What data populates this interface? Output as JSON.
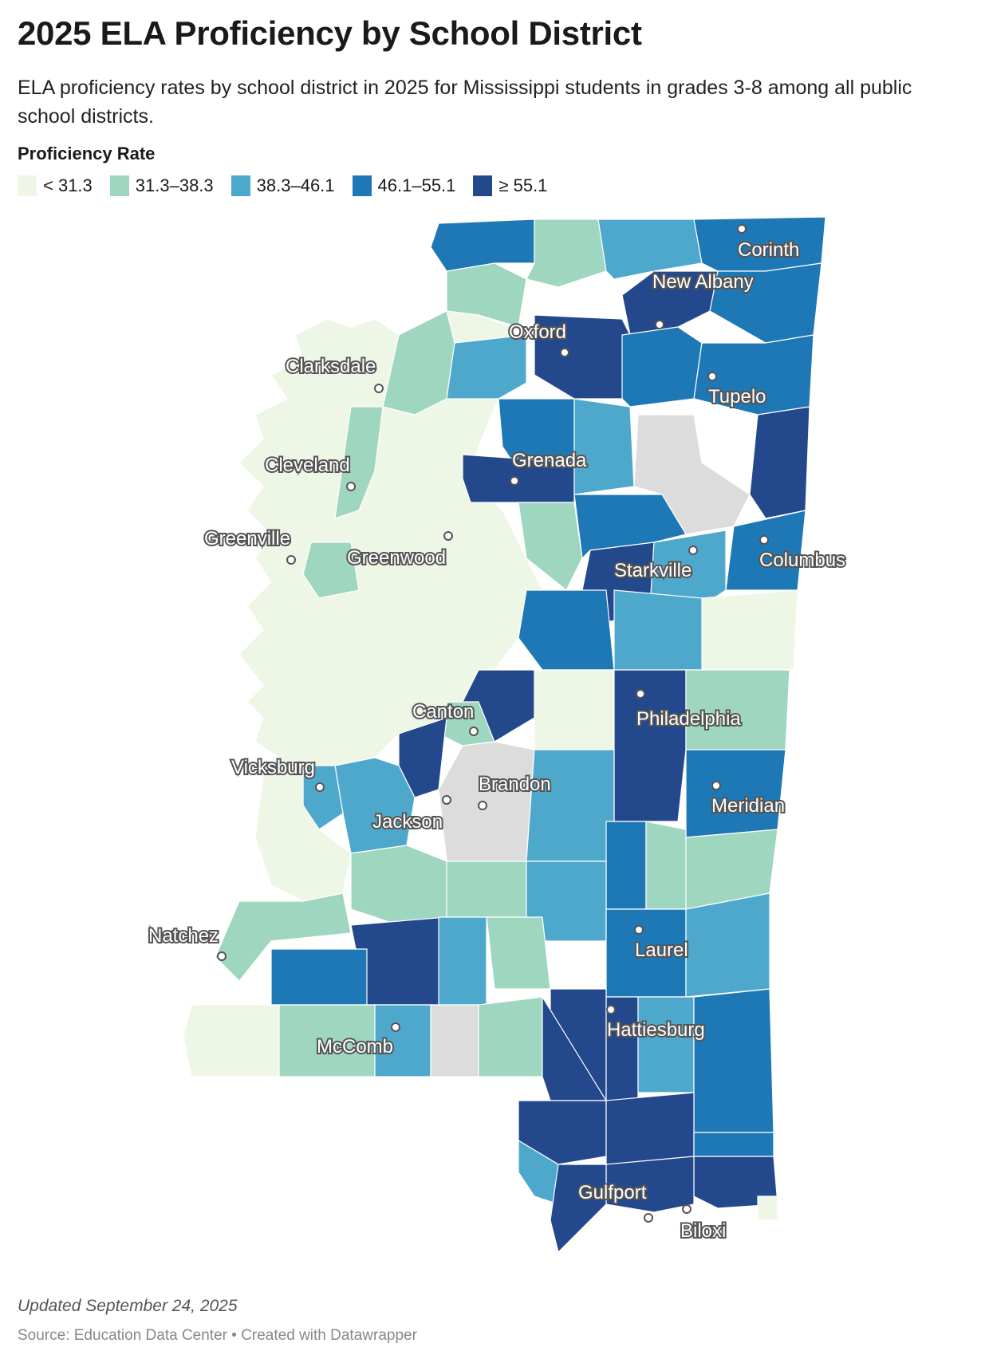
{
  "title": "2025 ELA Proficiency by School District",
  "subtitle": "ELA proficiency rates by school district in 2025 for Mississippi students in grades 3-8 among all public school districts.",
  "legend": {
    "title": "Proficiency Rate",
    "items": [
      {
        "label": "< 31.3",
        "color": "#eef6e6"
      },
      {
        "label": "31.3–38.3",
        "color": "#9fd6bf"
      },
      {
        "label": "38.3–46.1",
        "color": "#4ea8cb"
      },
      {
        "label": "46.1–55.1",
        "color": "#1f78b6"
      },
      {
        "label": "≥ 55.1",
        "color": "#24488c"
      }
    ]
  },
  "no_data_color": "#dcdcdc",
  "cities": [
    "Corinth",
    "New Albany",
    "Oxford",
    "Clarksdale",
    "Tupelo",
    "Grenada",
    "Cleveland",
    "Greenville",
    "Greenwood",
    "Columbus",
    "Starkville",
    "Philadelphia",
    "Canton",
    "Vicksburg",
    "Brandon",
    "Jackson",
    "Meridian",
    "Natchez",
    "Laurel",
    "Hattiesburg",
    "McComb",
    "Gulfport",
    "Biloxi"
  ],
  "footer": {
    "updated": "Updated September 24, 2025",
    "source": "Source: Education Data Center • Created with Datawrapper"
  }
}
